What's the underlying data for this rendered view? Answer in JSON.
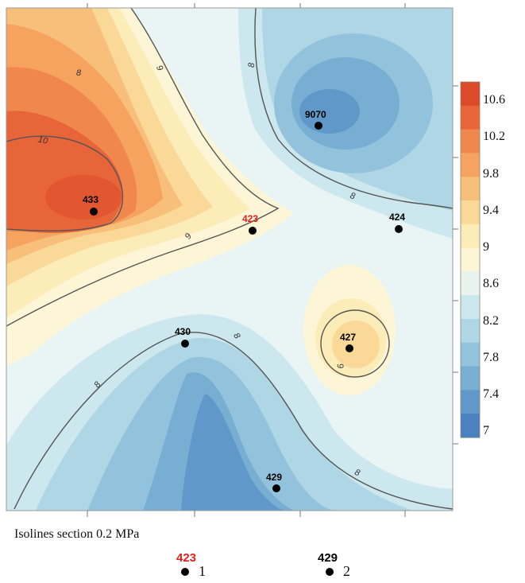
{
  "colorbar": {
    "labels": [
      "10.6",
      "10.2",
      "9.8",
      "9.4",
      "9",
      "8.6",
      "8.2",
      "7.8",
      "7.4",
      "7"
    ],
    "colors": [
      "#dc4a2a",
      "#e8653a",
      "#f0874c",
      "#f5a35f",
      "#f8bf7a",
      "#fad898",
      "#fbecb8",
      "#fdf6d6",
      "#e8f3ee",
      "#cce7ed",
      "#afd6e5",
      "#93c3dc",
      "#78aed2",
      "#5f98c9",
      "#4a82c0"
    ]
  },
  "isolines": {
    "labels": [
      "10",
      "9",
      "8",
      "8",
      "8",
      "9",
      "8",
      "8",
      "8",
      "9"
    ]
  },
  "wells": [
    {
      "name": "9070",
      "color": "#000000"
    },
    {
      "name": "433",
      "color": "#000000"
    },
    {
      "name": "423",
      "color": "#e02020"
    },
    {
      "name": "424",
      "color": "#000000"
    },
    {
      "name": "430",
      "color": "#000000"
    },
    {
      "name": "427",
      "color": "#000000"
    },
    {
      "name": "429",
      "color": "#000000"
    }
  ],
  "caption": "Isolines section 0.2 MPa",
  "legend": [
    {
      "well": "423",
      "well_color": "#e02020",
      "number": "1"
    },
    {
      "well": "429",
      "well_color": "#000000",
      "number": "2"
    }
  ]
}
